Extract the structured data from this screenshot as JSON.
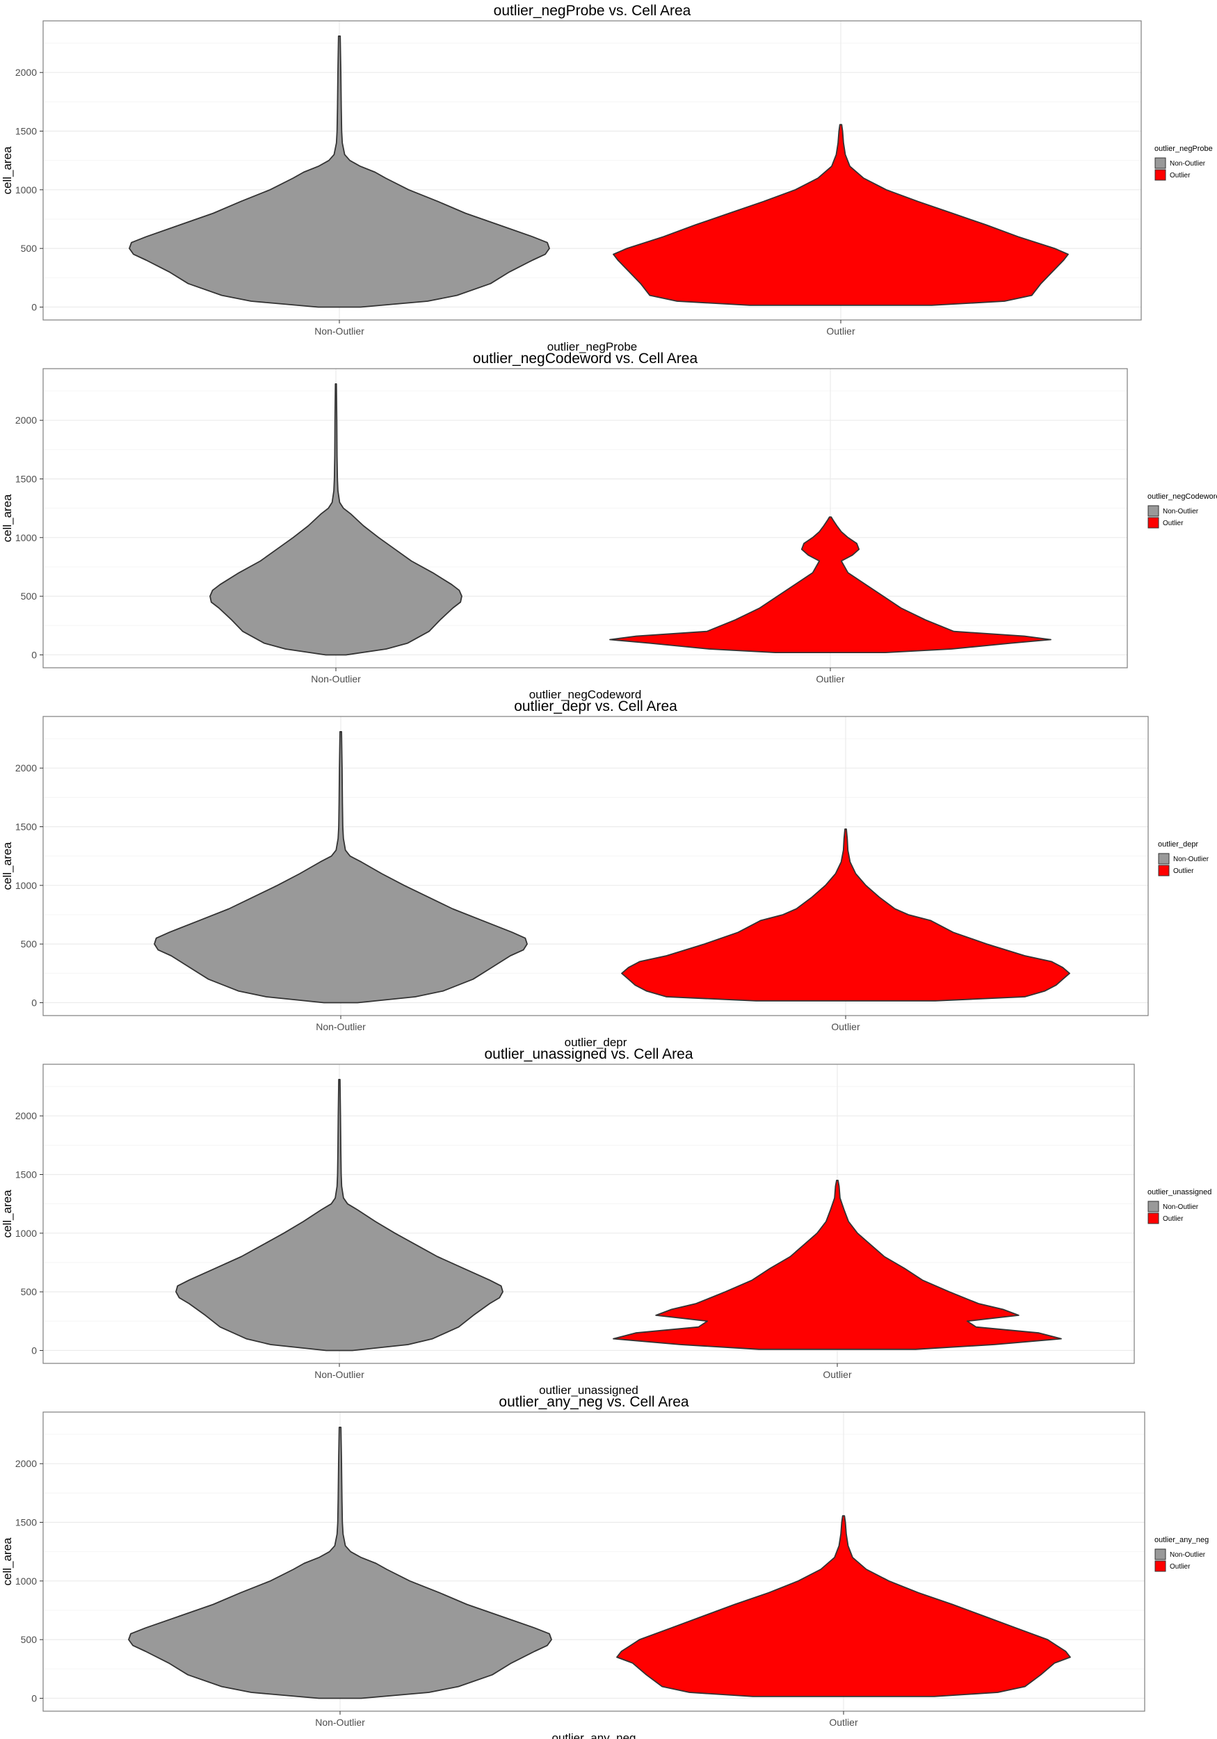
{
  "colors": {
    "non_outlier": "#999999",
    "outlier": "#ff0000",
    "outline": "#333333",
    "grid_major": "#ebebeb",
    "grid_minor": "#f5f5f5",
    "panel_border": "#7f7f7f"
  },
  "chart_data": [
    {
      "type": "violin",
      "title": "outlier_negProbe vs. Cell Area",
      "xlabel": "outlier_negProbe",
      "ylabel": "cell_area",
      "categories": [
        "Non-Outlier",
        "Outlier"
      ],
      "yticks": [
        0,
        500,
        1000,
        1500,
        2000
      ],
      "ylim": [
        -110,
        2440
      ],
      "grid": true,
      "legend": {
        "position": "right",
        "title": "outlier_negProbe",
        "labels": [
          "Non-Outlier",
          "Outlier"
        ]
      },
      "series": [
        {
          "category": "Non-Outlier",
          "color": "#999999",
          "profile": [
            [
              0,
              0.1
            ],
            [
              50,
              0.42
            ],
            [
              100,
              0.56
            ],
            [
              200,
              0.72
            ],
            [
              300,
              0.81
            ],
            [
              400,
              0.92
            ],
            [
              450,
              0.98
            ],
            [
              500,
              1.0
            ],
            [
              550,
              0.99
            ],
            [
              600,
              0.92
            ],
            [
              700,
              0.76
            ],
            [
              800,
              0.6
            ],
            [
              900,
              0.47
            ],
            [
              1000,
              0.33
            ],
            [
              1100,
              0.22
            ],
            [
              1150,
              0.17
            ],
            [
              1200,
              0.1
            ],
            [
              1250,
              0.05
            ],
            [
              1300,
              0.025
            ],
            [
              1400,
              0.014
            ],
            [
              1500,
              0.011
            ],
            [
              1700,
              0.009
            ],
            [
              2000,
              0.007
            ],
            [
              2310,
              0.004
            ]
          ]
        },
        {
          "category": "Outlier",
          "color": "#ff0000",
          "profile": [
            [
              15,
              0.4
            ],
            [
              50,
              0.72
            ],
            [
              100,
              0.84
            ],
            [
              200,
              0.88
            ],
            [
              300,
              0.93
            ],
            [
              400,
              0.98
            ],
            [
              450,
              1.0
            ],
            [
              500,
              0.94
            ],
            [
              600,
              0.78
            ],
            [
              700,
              0.64
            ],
            [
              800,
              0.49
            ],
            [
              900,
              0.34
            ],
            [
              1000,
              0.2
            ],
            [
              1100,
              0.1
            ],
            [
              1200,
              0.04
            ],
            [
              1300,
              0.02
            ],
            [
              1400,
              0.012
            ],
            [
              1500,
              0.008
            ],
            [
              1555,
              0.004
            ]
          ]
        }
      ]
    },
    {
      "type": "violin",
      "title": "outlier_negCodeword vs. Cell Area",
      "xlabel": "outlier_negCodeword",
      "ylabel": "cell_area",
      "categories": [
        "Non-Outlier",
        "Outlier"
      ],
      "yticks": [
        0,
        500,
        1000,
        1500,
        2000
      ],
      "ylim": [
        -110,
        2440
      ],
      "grid": true,
      "legend": {
        "position": "right",
        "title": "outlier_negCodeword",
        "labels": [
          "Non-Outlier",
          "Outlier"
        ]
      },
      "series": [
        {
          "category": "Non-Outlier",
          "color": "#999999",
          "profile": [
            [
              0,
              0.08
            ],
            [
              50,
              0.4
            ],
            [
              100,
              0.57
            ],
            [
              200,
              0.74
            ],
            [
              300,
              0.83
            ],
            [
              400,
              0.93
            ],
            [
              450,
              0.99
            ],
            [
              500,
              1.0
            ],
            [
              550,
              0.98
            ],
            [
              600,
              0.92
            ],
            [
              700,
              0.77
            ],
            [
              800,
              0.6
            ],
            [
              900,
              0.47
            ],
            [
              1000,
              0.34
            ],
            [
              1100,
              0.22
            ],
            [
              1200,
              0.12
            ],
            [
              1250,
              0.06
            ],
            [
              1300,
              0.03
            ],
            [
              1400,
              0.016
            ],
            [
              1500,
              0.012
            ],
            [
              1700,
              0.009
            ],
            [
              2000,
              0.007
            ],
            [
              2310,
              0.004
            ]
          ]
        },
        {
          "category": "Outlier",
          "color": "#ff0000",
          "profile": [
            [
              20,
              0.25
            ],
            [
              50,
              0.55
            ],
            [
              100,
              0.82
            ],
            [
              130,
              1.0
            ],
            [
              160,
              0.88
            ],
            [
              200,
              0.56
            ],
            [
              300,
              0.43
            ],
            [
              400,
              0.32
            ],
            [
              500,
              0.24
            ],
            [
              600,
              0.16
            ],
            [
              700,
              0.08
            ],
            [
              800,
              0.05
            ],
            [
              850,
              0.1
            ],
            [
              900,
              0.13
            ],
            [
              950,
              0.12
            ],
            [
              1000,
              0.08
            ],
            [
              1050,
              0.05
            ],
            [
              1100,
              0.03
            ],
            [
              1150,
              0.012
            ],
            [
              1175,
              0.004
            ]
          ]
        }
      ]
    },
    {
      "type": "violin",
      "title": "outlier_depr vs. Cell Area",
      "xlabel": "outlier_depr",
      "ylabel": "cell_area",
      "categories": [
        "Non-Outlier",
        "Outlier"
      ],
      "yticks": [
        0,
        500,
        1000,
        1500,
        2000
      ],
      "ylim": [
        -110,
        2440
      ],
      "grid": true,
      "legend": {
        "position": "right",
        "title": "outlier_depr",
        "labels": [
          "Non-Outlier",
          "Outlier"
        ]
      },
      "series": [
        {
          "category": "Non-Outlier",
          "color": "#999999",
          "profile": [
            [
              0,
              0.09
            ],
            [
              50,
              0.4
            ],
            [
              100,
              0.55
            ],
            [
              200,
              0.71
            ],
            [
              300,
              0.81
            ],
            [
              400,
              0.91
            ],
            [
              450,
              0.98
            ],
            [
              500,
              1.0
            ],
            [
              550,
              0.99
            ],
            [
              600,
              0.92
            ],
            [
              700,
              0.76
            ],
            [
              800,
              0.6
            ],
            [
              900,
              0.47
            ],
            [
              1000,
              0.34
            ],
            [
              1100,
              0.22
            ],
            [
              1200,
              0.11
            ],
            [
              1250,
              0.05
            ],
            [
              1300,
              0.025
            ],
            [
              1400,
              0.014
            ],
            [
              1500,
              0.011
            ],
            [
              1700,
              0.009
            ],
            [
              2000,
              0.007
            ],
            [
              2310,
              0.004
            ]
          ]
        },
        {
          "category": "Outlier",
          "color": "#ff0000",
          "profile": [
            [
              15,
              0.4
            ],
            [
              50,
              0.8
            ],
            [
              100,
              0.89
            ],
            [
              150,
              0.94
            ],
            [
              200,
              0.97
            ],
            [
              250,
              1.0
            ],
            [
              300,
              0.97
            ],
            [
              350,
              0.92
            ],
            [
              400,
              0.8
            ],
            [
              500,
              0.63
            ],
            [
              600,
              0.48
            ],
            [
              700,
              0.38
            ],
            [
              750,
              0.28
            ],
            [
              800,
              0.22
            ],
            [
              900,
              0.15
            ],
            [
              1000,
              0.09
            ],
            [
              1100,
              0.045
            ],
            [
              1200,
              0.02
            ],
            [
              1300,
              0.01
            ],
            [
              1400,
              0.007
            ],
            [
              1480,
              0.003
            ]
          ]
        }
      ]
    },
    {
      "type": "violin",
      "title": "outlier_unassigned vs. Cell Area",
      "xlabel": "outlier_unassigned",
      "ylabel": "cell_area",
      "categories": [
        "Non-Outlier",
        "Outlier"
      ],
      "yticks": [
        0,
        500,
        1000,
        1500,
        2000
      ],
      "ylim": [
        -110,
        2440
      ],
      "grid": true,
      "legend": {
        "position": "right",
        "title": "outlier_unassigned",
        "labels": [
          "Non-Outlier",
          "Outlier"
        ]
      },
      "series": [
        {
          "category": "Non-Outlier",
          "color": "#999999",
          "profile": [
            [
              0,
              0.08
            ],
            [
              50,
              0.42
            ],
            [
              100,
              0.57
            ],
            [
              200,
              0.73
            ],
            [
              300,
              0.82
            ],
            [
              400,
              0.92
            ],
            [
              450,
              0.98
            ],
            [
              500,
              1.0
            ],
            [
              550,
              0.99
            ],
            [
              600,
              0.92
            ],
            [
              700,
              0.76
            ],
            [
              800,
              0.6
            ],
            [
              900,
              0.47
            ],
            [
              1000,
              0.34
            ],
            [
              1100,
              0.22
            ],
            [
              1200,
              0.11
            ],
            [
              1250,
              0.05
            ],
            [
              1300,
              0.025
            ],
            [
              1400,
              0.014
            ],
            [
              1500,
              0.011
            ],
            [
              1700,
              0.009
            ],
            [
              2000,
              0.007
            ],
            [
              2310,
              0.004
            ]
          ]
        },
        {
          "category": "Outlier",
          "color": "#ff0000",
          "profile": [
            [
              10,
              0.35
            ],
            [
              50,
              0.7
            ],
            [
              100,
              1.0
            ],
            [
              150,
              0.9
            ],
            [
              200,
              0.62
            ],
            [
              250,
              0.58
            ],
            [
              300,
              0.81
            ],
            [
              350,
              0.74
            ],
            [
              400,
              0.63
            ],
            [
              500,
              0.5
            ],
            [
              600,
              0.38
            ],
            [
              700,
              0.3
            ],
            [
              800,
              0.21
            ],
            [
              900,
              0.15
            ],
            [
              1000,
              0.09
            ],
            [
              1100,
              0.05
            ],
            [
              1200,
              0.03
            ],
            [
              1300,
              0.012
            ],
            [
              1400,
              0.008
            ],
            [
              1450,
              0.003
            ]
          ]
        }
      ]
    },
    {
      "type": "violin",
      "title": "outlier_any_neg vs. Cell Area",
      "xlabel": "outlier_any_neg",
      "ylabel": "cell_area",
      "categories": [
        "Non-Outlier",
        "Outlier"
      ],
      "yticks": [
        0,
        500,
        1000,
        1500,
        2000
      ],
      "ylim": [
        -110,
        2440
      ],
      "grid": true,
      "legend": {
        "position": "right",
        "title": "outlier_any_neg",
        "labels": [
          "Non-Outlier",
          "Outlier"
        ]
      },
      "series": [
        {
          "category": "Non-Outlier",
          "color": "#999999",
          "profile": [
            [
              0,
              0.1
            ],
            [
              50,
              0.42
            ],
            [
              100,
              0.56
            ],
            [
              200,
              0.72
            ],
            [
              300,
              0.81
            ],
            [
              400,
              0.92
            ],
            [
              450,
              0.98
            ],
            [
              500,
              1.0
            ],
            [
              550,
              0.99
            ],
            [
              600,
              0.92
            ],
            [
              700,
              0.76
            ],
            [
              800,
              0.6
            ],
            [
              900,
              0.47
            ],
            [
              1000,
              0.33
            ],
            [
              1100,
              0.22
            ],
            [
              1150,
              0.17
            ],
            [
              1200,
              0.1
            ],
            [
              1250,
              0.05
            ],
            [
              1300,
              0.025
            ],
            [
              1400,
              0.014
            ],
            [
              1500,
              0.011
            ],
            [
              1700,
              0.009
            ],
            [
              2000,
              0.007
            ],
            [
              2310,
              0.004
            ]
          ]
        },
        {
          "category": "Outlier",
          "color": "#ff0000",
          "profile": [
            [
              15,
              0.4
            ],
            [
              50,
              0.68
            ],
            [
              100,
              0.8
            ],
            [
              200,
              0.87
            ],
            [
              300,
              0.93
            ],
            [
              350,
              1.0
            ],
            [
              400,
              0.98
            ],
            [
              450,
              0.94
            ],
            [
              500,
              0.9
            ],
            [
              600,
              0.76
            ],
            [
              700,
              0.62
            ],
            [
              800,
              0.48
            ],
            [
              900,
              0.33
            ],
            [
              1000,
              0.2
            ],
            [
              1100,
              0.1
            ],
            [
              1200,
              0.04
            ],
            [
              1300,
              0.02
            ],
            [
              1400,
              0.012
            ],
            [
              1500,
              0.008
            ],
            [
              1555,
              0.004
            ]
          ]
        }
      ]
    }
  ]
}
